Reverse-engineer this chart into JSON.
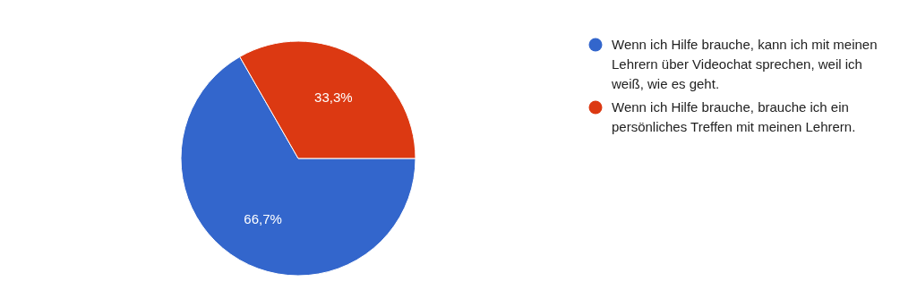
{
  "chart_data": {
    "type": "pie",
    "categories": [
      "Wenn ich Hilfe brauche, kann ich mit meinen Lehrern über Videochat sprechen, weil ich weiß, wie es geht.",
      "Wenn ich Hilfe brauche, brauche ich ein persönliches Treffen mit meinen Lehrern."
    ],
    "values": [
      66.7,
      33.3
    ],
    "colors": [
      "#3366cc",
      "#dc3912"
    ],
    "value_labels": [
      "66,7%",
      "33,3%"
    ],
    "legend": "right"
  }
}
